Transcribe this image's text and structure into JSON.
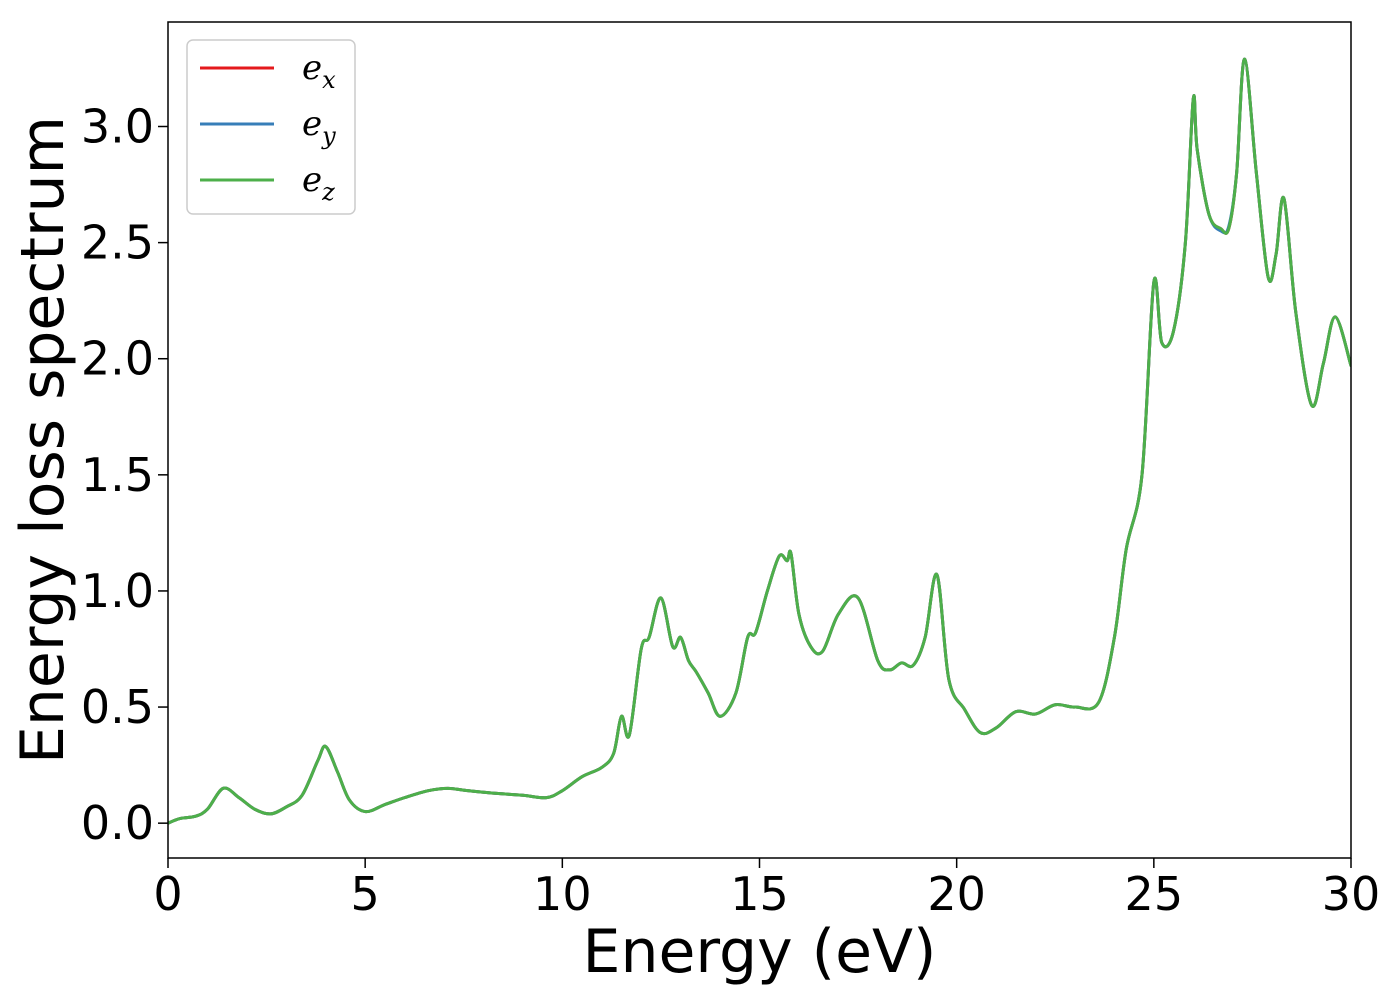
{
  "chart_data": {
    "type": "line",
    "title": "",
    "xlabel": "Energy (eV)",
    "ylabel": "Energy loss spectrum",
    "xlim": [
      0,
      30
    ],
    "ylim": [
      -0.15,
      3.45
    ],
    "xticks": [
      0,
      5,
      10,
      15,
      20,
      25,
      30
    ],
    "xtick_labels": [
      "0",
      "5",
      "10",
      "15",
      "20",
      "25",
      "30"
    ],
    "yticks": [
      0.0,
      0.5,
      1.0,
      1.5,
      2.0,
      2.5,
      3.0
    ],
    "ytick_labels": [
      "0.0",
      "0.5",
      "1.0",
      "1.5",
      "2.0",
      "2.5",
      "3.0"
    ],
    "grid": false,
    "legend": {
      "placement": "top-left",
      "entries": [
        {
          "base": "e",
          "sub": "x",
          "color": "#e41a1c"
        },
        {
          "base": "e",
          "sub": "y",
          "color": "#377eb8"
        },
        {
          "base": "e",
          "sub": "z",
          "color": "#4daf4a"
        }
      ]
    },
    "x": [
      0,
      0.3,
      0.7,
      1.0,
      1.4,
      1.8,
      2.2,
      2.6,
      3.0,
      3.4,
      3.8,
      4.0,
      4.3,
      4.6,
      5.0,
      5.5,
      6.0,
      6.6,
      7.1,
      7.6,
      8.2,
      9.0,
      9.6,
      10.0,
      10.5,
      11.0,
      11.3,
      11.5,
      11.7,
      12.0,
      12.2,
      12.5,
      12.8,
      13.0,
      13.2,
      13.4,
      13.7,
      14.0,
      14.4,
      14.7,
      14.9,
      15.2,
      15.5,
      15.7,
      15.8,
      16.0,
      16.3,
      16.6,
      17.0,
      17.5,
      18.0,
      18.3,
      18.6,
      18.9,
      19.2,
      19.5,
      19.8,
      20.2,
      20.6,
      21.0,
      21.5,
      22.0,
      22.5,
      23.0,
      23.6,
      24.0,
      24.3,
      24.7,
      25.0,
      25.2,
      25.5,
      25.8,
      26.0,
      26.1,
      26.4,
      26.7,
      26.9,
      27.1,
      27.3,
      27.6,
      27.9,
      28.1,
      28.3,
      28.6,
      29.0,
      29.3,
      29.6,
      30.0
    ],
    "series": [
      {
        "name": "e_x",
        "values": [
          0.0,
          0.02,
          0.03,
          0.06,
          0.15,
          0.11,
          0.06,
          0.04,
          0.07,
          0.12,
          0.27,
          0.33,
          0.22,
          0.1,
          0.05,
          0.08,
          0.11,
          0.14,
          0.15,
          0.14,
          0.13,
          0.12,
          0.11,
          0.14,
          0.2,
          0.24,
          0.3,
          0.46,
          0.38,
          0.75,
          0.8,
          0.97,
          0.76,
          0.8,
          0.7,
          0.65,
          0.56,
          0.46,
          0.56,
          0.8,
          0.82,
          1.0,
          1.15,
          1.13,
          1.16,
          0.9,
          0.76,
          0.74,
          0.9,
          0.97,
          0.7,
          0.66,
          0.69,
          0.68,
          0.8,
          1.07,
          0.62,
          0.49,
          0.39,
          0.41,
          0.48,
          0.47,
          0.51,
          0.5,
          0.52,
          0.8,
          1.18,
          1.5,
          2.33,
          2.07,
          2.12,
          2.5,
          3.12,
          2.9,
          2.62,
          2.56,
          2.56,
          2.8,
          3.29,
          2.8,
          2.35,
          2.45,
          2.69,
          2.2,
          1.8,
          1.98,
          2.18,
          1.97
        ]
      },
      {
        "name": "e_y",
        "values": [
          0.0,
          0.02,
          0.03,
          0.06,
          0.15,
          0.11,
          0.06,
          0.04,
          0.07,
          0.12,
          0.27,
          0.33,
          0.22,
          0.1,
          0.05,
          0.08,
          0.11,
          0.14,
          0.15,
          0.14,
          0.13,
          0.12,
          0.11,
          0.14,
          0.2,
          0.24,
          0.3,
          0.46,
          0.38,
          0.75,
          0.8,
          0.97,
          0.76,
          0.8,
          0.7,
          0.65,
          0.56,
          0.46,
          0.56,
          0.8,
          0.82,
          1.0,
          1.15,
          1.13,
          1.16,
          0.9,
          0.76,
          0.74,
          0.9,
          0.97,
          0.7,
          0.66,
          0.69,
          0.68,
          0.8,
          1.07,
          0.62,
          0.49,
          0.39,
          0.41,
          0.48,
          0.47,
          0.51,
          0.5,
          0.52,
          0.8,
          1.18,
          1.5,
          2.33,
          2.07,
          2.12,
          2.5,
          3.12,
          2.9,
          2.62,
          2.55,
          2.57,
          2.8,
          3.29,
          2.8,
          2.35,
          2.45,
          2.69,
          2.2,
          1.8,
          1.98,
          2.18,
          1.97
        ]
      },
      {
        "name": "e_z",
        "values": [
          0.0,
          0.02,
          0.03,
          0.06,
          0.15,
          0.11,
          0.06,
          0.04,
          0.07,
          0.12,
          0.27,
          0.33,
          0.22,
          0.1,
          0.05,
          0.08,
          0.11,
          0.14,
          0.15,
          0.14,
          0.13,
          0.12,
          0.11,
          0.14,
          0.2,
          0.24,
          0.3,
          0.46,
          0.38,
          0.75,
          0.8,
          0.97,
          0.76,
          0.8,
          0.7,
          0.65,
          0.56,
          0.46,
          0.56,
          0.8,
          0.82,
          1.0,
          1.15,
          1.13,
          1.16,
          0.9,
          0.76,
          0.74,
          0.9,
          0.97,
          0.7,
          0.66,
          0.69,
          0.68,
          0.8,
          1.07,
          0.62,
          0.49,
          0.39,
          0.41,
          0.48,
          0.47,
          0.51,
          0.5,
          0.52,
          0.8,
          1.18,
          1.5,
          2.33,
          2.07,
          2.12,
          2.5,
          3.12,
          2.9,
          2.62,
          2.56,
          2.56,
          2.8,
          3.29,
          2.8,
          2.35,
          2.45,
          2.69,
          2.2,
          1.8,
          1.98,
          2.18,
          1.97
        ]
      }
    ]
  }
}
